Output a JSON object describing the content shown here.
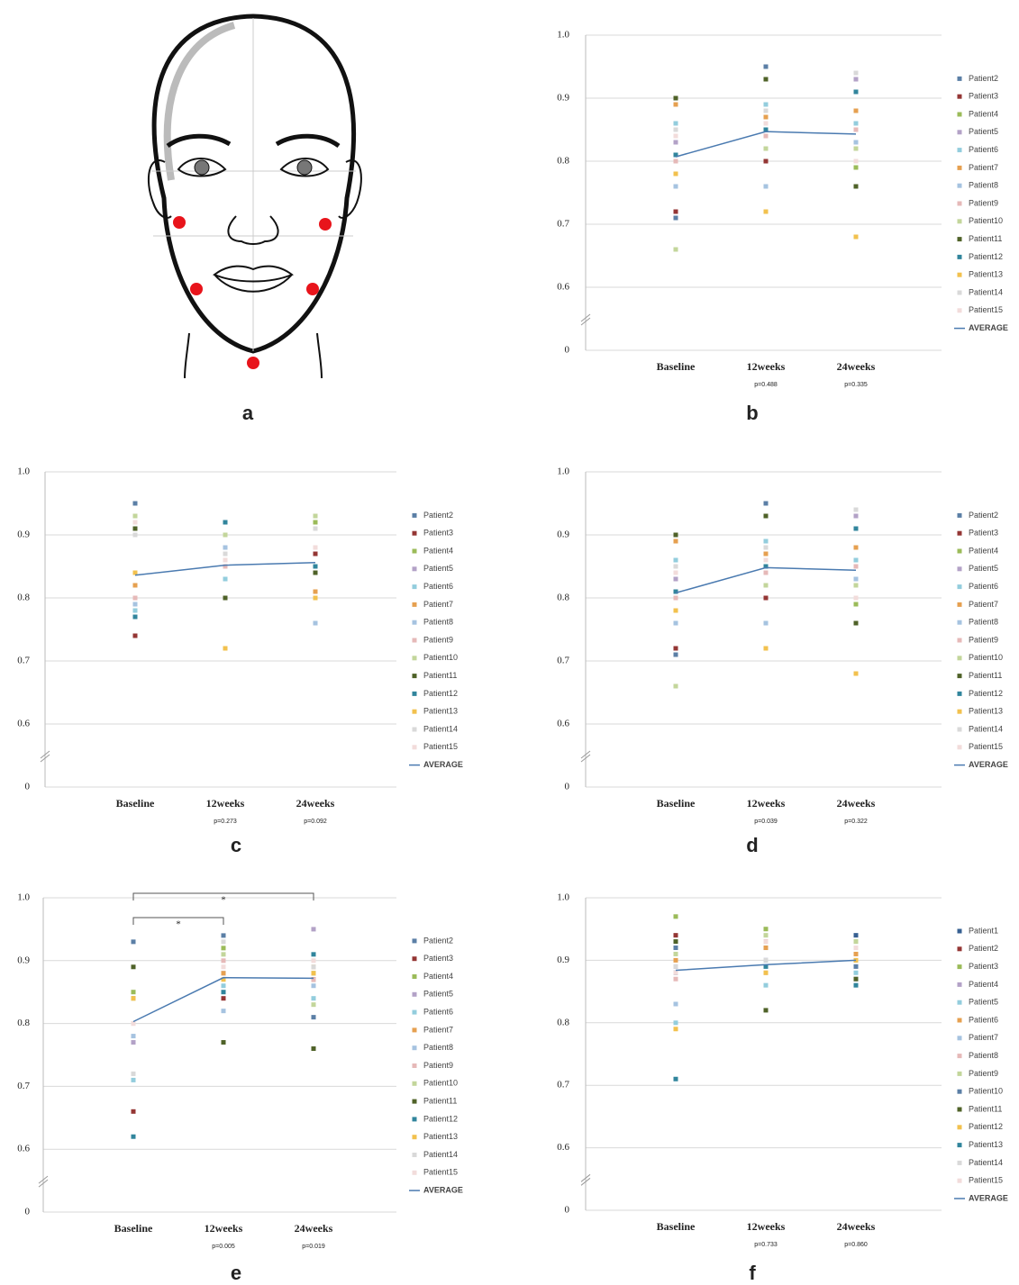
{
  "diagram": {
    "label": "a"
  },
  "chart_data": [
    {
      "type": "line",
      "label": "b",
      "categories": [
        "Baseline",
        "12weeks",
        "24weeks"
      ],
      "category_notes": [
        null,
        "p=0.488",
        "p=0.335"
      ],
      "ylim": [
        0,
        1
      ],
      "ybreak": [
        0,
        0.6
      ],
      "yticks": [
        0,
        0.6,
        0.7,
        0.8,
        0.9,
        {
          "value": 1,
          "label": "1.0"
        }
      ],
      "grid": true,
      "series": [
        {
          "name": "Patient2",
          "color": "#5b7fa6",
          "values": [
            0.71,
            0.95,
            0.94
          ]
        },
        {
          "name": "Patient3",
          "color": "#943634",
          "values": [
            0.72,
            0.8,
            0.88
          ]
        },
        {
          "name": "Patient4",
          "color": "#9bbb59",
          "values": [
            0.9,
            0.85,
            0.79
          ]
        },
        {
          "name": "Patient5",
          "color": "#b3a2c7",
          "values": [
            0.83,
            0.87,
            0.93
          ]
        },
        {
          "name": "Patient6",
          "color": "#93cddd",
          "values": [
            0.86,
            0.89,
            0.86
          ]
        },
        {
          "name": "Patient7",
          "color": "#e6a050",
          "values": [
            0.89,
            0.87,
            0.88
          ]
        },
        {
          "name": "Patient8",
          "color": "#a6c3e0",
          "values": [
            0.76,
            0.76,
            0.83
          ]
        },
        {
          "name": "Patient9",
          "color": "#e6b9b8",
          "values": [
            0.8,
            0.84,
            0.85
          ]
        },
        {
          "name": "Patient10",
          "color": "#c3d69b",
          "values": [
            0.66,
            0.82,
            0.82
          ]
        },
        {
          "name": "Patient11",
          "color": "#4f6228",
          "values": [
            0.9,
            0.93,
            0.76
          ]
        },
        {
          "name": "Patient12",
          "color": "#31859c",
          "values": [
            0.81,
            0.85,
            0.91
          ]
        },
        {
          "name": "Patient13",
          "color": "#f2c14e",
          "values": [
            0.78,
            0.72,
            0.68
          ]
        },
        {
          "name": "Patient14",
          "color": "#d9d9d9",
          "values": [
            0.85,
            0.88,
            0.94
          ]
        },
        {
          "name": "Patient15",
          "color": "#f2dcdb",
          "values": [
            0.84,
            0.86,
            0.8
          ]
        },
        {
          "name": "AVERAGE",
          "color": "#4a7ab0",
          "line": true,
          "values": [
            0.807,
            0.847,
            0.843
          ]
        }
      ]
    },
    {
      "type": "line",
      "label": "c",
      "categories": [
        "Baseline",
        "12weeks",
        "24weeks"
      ],
      "category_notes": [
        null,
        "p=0.273",
        "p=0.092"
      ],
      "ylim": [
        0,
        1
      ],
      "ybreak": [
        0,
        0.6
      ],
      "yticks": [
        0,
        0.6,
        0.7,
        0.8,
        0.9,
        {
          "value": 1,
          "label": "1.0"
        }
      ],
      "grid": true,
      "series": [
        {
          "name": "Patient2",
          "color": "#5b7fa6",
          "values": [
            0.95,
            0.92,
            0.93
          ]
        },
        {
          "name": "Patient3",
          "color": "#943634",
          "values": [
            0.74,
            0.86,
            0.87
          ]
        },
        {
          "name": "Patient4",
          "color": "#9bbb59",
          "values": [
            0.92,
            0.9,
            0.92
          ]
        },
        {
          "name": "Patient5",
          "color": "#b3a2c7",
          "values": [
            0.9,
            0.88,
            0.8
          ]
        },
        {
          "name": "Patient6",
          "color": "#93cddd",
          "values": [
            0.78,
            0.83,
            0.85
          ]
        },
        {
          "name": "Patient7",
          "color": "#e6a050",
          "values": [
            0.82,
            0.87,
            0.81
          ]
        },
        {
          "name": "Patient8",
          "color": "#a6c3e0",
          "values": [
            0.79,
            0.88,
            0.76
          ]
        },
        {
          "name": "Patient9",
          "color": "#e6b9b8",
          "values": [
            0.8,
            0.85,
            0.84
          ]
        },
        {
          "name": "Patient10",
          "color": "#c3d69b",
          "values": [
            0.93,
            0.9,
            0.93
          ]
        },
        {
          "name": "Patient11",
          "color": "#4f6228",
          "values": [
            0.91,
            0.8,
            0.84
          ]
        },
        {
          "name": "Patient12",
          "color": "#31859c",
          "values": [
            0.77,
            0.92,
            0.85
          ]
        },
        {
          "name": "Patient13",
          "color": "#f2c14e",
          "values": [
            0.84,
            0.72,
            0.8
          ]
        },
        {
          "name": "Patient14",
          "color": "#d9d9d9",
          "values": [
            0.9,
            0.87,
            0.91
          ]
        },
        {
          "name": "Patient15",
          "color": "#f2dcdb",
          "values": [
            0.92,
            0.86,
            0.88
          ]
        },
        {
          "name": "AVERAGE",
          "color": "#4a7ab0",
          "line": true,
          "values": [
            0.836,
            0.852,
            0.856
          ]
        }
      ]
    },
    {
      "type": "line",
      "label": "d",
      "categories": [
        "Baseline",
        "12weeks",
        "24weeks"
      ],
      "category_notes": [
        null,
        "p=0.039",
        "p=0.322"
      ],
      "ylim": [
        0,
        1
      ],
      "ybreak": [
        0,
        0.6
      ],
      "yticks": [
        0,
        0.6,
        0.7,
        0.8,
        0.9,
        {
          "value": 1,
          "label": "1.0"
        }
      ],
      "grid": true,
      "series": [
        {
          "name": "Patient2",
          "color": "#5b7fa6",
          "values": [
            0.71,
            0.95,
            0.94
          ]
        },
        {
          "name": "Patient3",
          "color": "#943634",
          "values": [
            0.72,
            0.8,
            0.88
          ]
        },
        {
          "name": "Patient4",
          "color": "#9bbb59",
          "values": [
            0.9,
            0.85,
            0.79
          ]
        },
        {
          "name": "Patient5",
          "color": "#b3a2c7",
          "values": [
            0.83,
            0.87,
            0.93
          ]
        },
        {
          "name": "Patient6",
          "color": "#93cddd",
          "values": [
            0.86,
            0.89,
            0.86
          ]
        },
        {
          "name": "Patient7",
          "color": "#e6a050",
          "values": [
            0.89,
            0.87,
            0.88
          ]
        },
        {
          "name": "Patient8",
          "color": "#a6c3e0",
          "values": [
            0.76,
            0.76,
            0.83
          ]
        },
        {
          "name": "Patient9",
          "color": "#e6b9b8",
          "values": [
            0.8,
            0.84,
            0.85
          ]
        },
        {
          "name": "Patient10",
          "color": "#c3d69b",
          "values": [
            0.66,
            0.82,
            0.82
          ]
        },
        {
          "name": "Patient11",
          "color": "#4f6228",
          "values": [
            0.9,
            0.93,
            0.76
          ]
        },
        {
          "name": "Patient12",
          "color": "#31859c",
          "values": [
            0.81,
            0.85,
            0.91
          ]
        },
        {
          "name": "Patient13",
          "color": "#f2c14e",
          "values": [
            0.78,
            0.72,
            0.68
          ]
        },
        {
          "name": "Patient14",
          "color": "#d9d9d9",
          "values": [
            0.85,
            0.88,
            0.94
          ]
        },
        {
          "name": "Patient15",
          "color": "#f2dcdb",
          "values": [
            0.84,
            0.86,
            0.8
          ]
        },
        {
          "name": "AVERAGE",
          "color": "#4a7ab0",
          "line": true,
          "values": [
            0.808,
            0.848,
            0.844
          ]
        }
      ]
    },
    {
      "type": "line",
      "label": "e",
      "categories": [
        "Baseline",
        "12weeks",
        "24weeks"
      ],
      "category_notes": [
        null,
        "p=0.005",
        "p=0.019"
      ],
      "ylim": [
        0,
        1
      ],
      "ybreak": [
        0,
        0.6
      ],
      "yticks": [
        0,
        0.6,
        0.7,
        0.8,
        0.9,
        {
          "value": 1,
          "label": "1.0"
        }
      ],
      "grid": true,
      "significance": [
        {
          "from": 0,
          "to": 2,
          "label": "*"
        },
        {
          "from": 0,
          "to": 1,
          "label": "*"
        }
      ],
      "series": [
        {
          "name": "Patient2",
          "color": "#5b7fa6",
          "values": [
            0.93,
            0.94,
            0.81
          ]
        },
        {
          "name": "Patient3",
          "color": "#943634",
          "values": [
            0.66,
            0.84,
            0.87
          ]
        },
        {
          "name": "Patient4",
          "color": "#9bbb59",
          "values": [
            0.85,
            0.92,
            0.88
          ]
        },
        {
          "name": "Patient5",
          "color": "#b3a2c7",
          "values": [
            0.77,
            0.88,
            0.95
          ]
        },
        {
          "name": "Patient6",
          "color": "#93cddd",
          "values": [
            0.71,
            0.86,
            0.84
          ]
        },
        {
          "name": "Patient7",
          "color": "#e6a050",
          "values": [
            0.84,
            0.88,
            0.89
          ]
        },
        {
          "name": "Patient8",
          "color": "#a6c3e0",
          "values": [
            0.78,
            0.82,
            0.86
          ]
        },
        {
          "name": "Patient9",
          "color": "#e6b9b8",
          "values": [
            0.8,
            0.9,
            0.87
          ]
        },
        {
          "name": "Patient10",
          "color": "#c3d69b",
          "values": [
            0.84,
            0.91,
            0.83
          ]
        },
        {
          "name": "Patient11",
          "color": "#4f6228",
          "values": [
            0.89,
            0.77,
            0.76
          ]
        },
        {
          "name": "Patient12",
          "color": "#31859c",
          "values": [
            0.62,
            0.85,
            0.91
          ]
        },
        {
          "name": "Patient13",
          "color": "#f2c14e",
          "values": [
            0.84,
            0.87,
            0.88
          ]
        },
        {
          "name": "Patient14",
          "color": "#d9d9d9",
          "values": [
            0.72,
            0.93,
            0.89
          ]
        },
        {
          "name": "Patient15",
          "color": "#f2dcdb",
          "values": [
            0.8,
            0.89,
            0.9
          ]
        },
        {
          "name": "AVERAGE",
          "color": "#4a7ab0",
          "line": true,
          "values": [
            0.803,
            0.873,
            0.872
          ]
        }
      ]
    },
    {
      "type": "line",
      "label": "f",
      "categories": [
        "Baseline",
        "12weeks",
        "24weeks"
      ],
      "category_notes": [
        null,
        "p=0.733",
        "p=0.860"
      ],
      "ylim": [
        0,
        1
      ],
      "ybreak": [
        0,
        0.6
      ],
      "yticks": [
        0,
        0.6,
        0.7,
        0.8,
        0.9,
        {
          "value": 1,
          "label": "1.0"
        }
      ],
      "grid": true,
      "series": [
        {
          "name": "Patient1",
          "color": "#376092",
          "values": [
            0.88,
            0.92,
            0.94
          ]
        },
        {
          "name": "Patient2",
          "color": "#943634",
          "values": [
            0.94,
            0.93,
            0.92
          ]
        },
        {
          "name": "Patient3",
          "color": "#9bbb59",
          "values": [
            0.97,
            0.95,
            0.93
          ]
        },
        {
          "name": "Patient4",
          "color": "#b3a2c7",
          "values": [
            0.89,
            0.9,
            0.9
          ]
        },
        {
          "name": "Patient5",
          "color": "#93cddd",
          "values": [
            0.8,
            0.86,
            0.88
          ]
        },
        {
          "name": "Patient6",
          "color": "#e6a050",
          "values": [
            0.9,
            0.92,
            0.91
          ]
        },
        {
          "name": "Patient7",
          "color": "#a6c3e0",
          "values": [
            0.83,
            0.89,
            0.87
          ]
        },
        {
          "name": "Patient8",
          "color": "#e6b9b8",
          "values": [
            0.87,
            0.88,
            0.89
          ]
        },
        {
          "name": "Patient9",
          "color": "#c3d69b",
          "values": [
            0.91,
            0.94,
            0.93
          ]
        },
        {
          "name": "Patient10",
          "color": "#5b7fa6",
          "values": [
            0.92,
            0.9,
            0.89
          ]
        },
        {
          "name": "Patient11",
          "color": "#4f6228",
          "values": [
            0.93,
            0.82,
            0.87
          ]
        },
        {
          "name": "Patient12",
          "color": "#f2c14e",
          "values": [
            0.79,
            0.88,
            0.9
          ]
        },
        {
          "name": "Patient13",
          "color": "#31859c",
          "values": [
            0.71,
            0.89,
            0.86
          ]
        },
        {
          "name": "Patient14",
          "color": "#d9d9d9",
          "values": [
            0.89,
            0.9,
            0.92
          ]
        },
        {
          "name": "Patient15",
          "color": "#f2dcdb",
          "values": [
            0.88,
            0.93,
            0.92
          ]
        },
        {
          "name": "AVERAGE",
          "color": "#4a7ab0",
          "line": true,
          "values": [
            0.884,
            0.893,
            0.9
          ]
        }
      ]
    }
  ]
}
